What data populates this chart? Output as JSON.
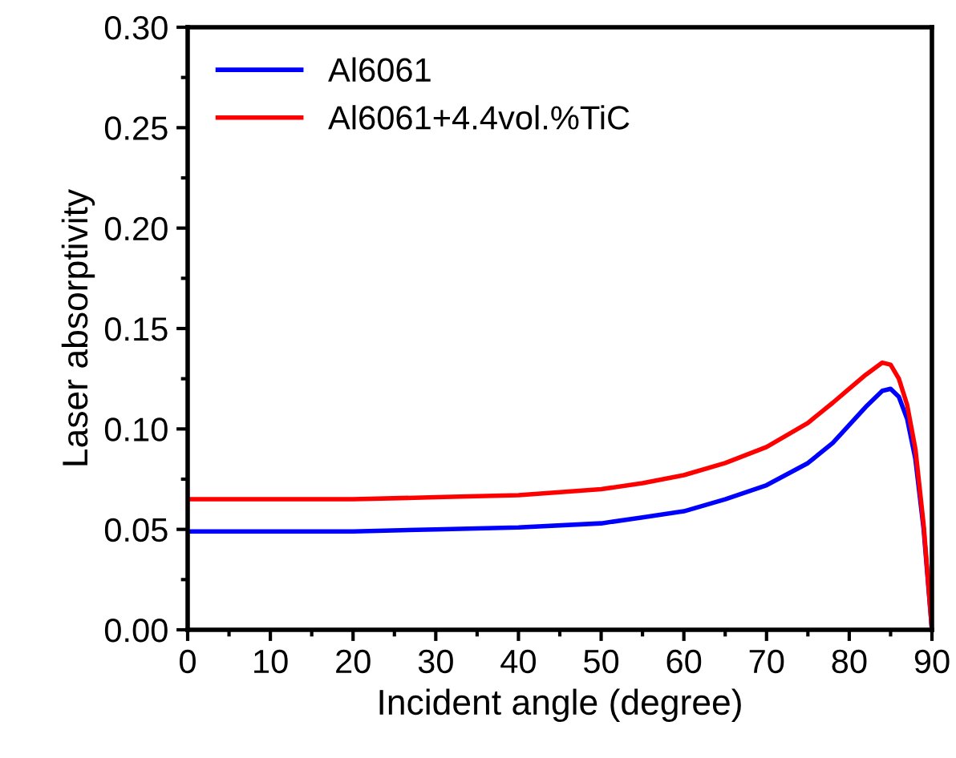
{
  "chart_data": {
    "type": "line",
    "xlabel": "Incident angle (degree)",
    "ylabel": "Laser absorptivity",
    "xlim": [
      0,
      90
    ],
    "xticks": [
      0,
      10,
      20,
      30,
      40,
      50,
      60,
      70,
      80,
      90
    ],
    "ylim": [
      0,
      0.3
    ],
    "yticks": [
      {
        "value": 0,
        "label": "0.00"
      },
      {
        "value": 0.05,
        "label": "0.05"
      },
      {
        "value": 0.1,
        "label": "0.10"
      },
      {
        "value": 0.15,
        "label": "0.15"
      },
      {
        "value": 0.2,
        "label": "0.20"
      },
      {
        "value": 0.25,
        "label": "0.25"
      },
      {
        "value": 0.3,
        "label": "0.30"
      }
    ],
    "grid": false,
    "legend": "top left",
    "marker": "none",
    "line_style": "solid",
    "series": [
      {
        "name": "Al6061",
        "color": "#0000ff",
        "x": [
          0,
          10,
          20,
          30,
          40,
          50,
          55,
          60,
          65,
          70,
          75,
          78,
          80,
          82,
          84,
          85,
          86,
          87,
          88,
          89,
          90
        ],
        "values": [
          0.049,
          0.049,
          0.049,
          0.05,
          0.051,
          0.053,
          0.056,
          0.059,
          0.065,
          0.072,
          0.083,
          0.093,
          0.102,
          0.111,
          0.119,
          0.12,
          0.116,
          0.105,
          0.085,
          0.05,
          0
        ]
      },
      {
        "name": "Al6061+4.4vol.%TiC",
        "color": "#ff0000",
        "x": [
          0,
          10,
          20,
          30,
          40,
          50,
          55,
          60,
          65,
          70,
          75,
          78,
          80,
          82,
          84,
          85,
          86,
          87,
          88,
          89,
          90
        ],
        "values": [
          0.065,
          0.065,
          0.065,
          0.066,
          0.067,
          0.07,
          0.073,
          0.077,
          0.083,
          0.091,
          0.103,
          0.113,
          0.12,
          0.127,
          0.133,
          0.132,
          0.125,
          0.112,
          0.09,
          0.052,
          0
        ]
      }
    ]
  }
}
